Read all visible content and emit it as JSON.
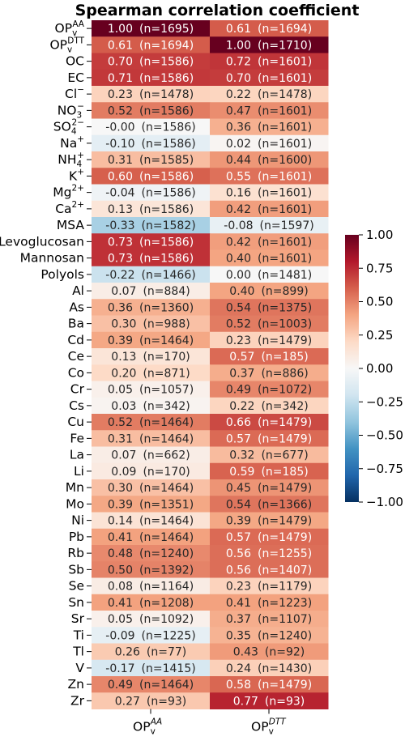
{
  "title": "Spearman correlation coefficient",
  "chart_data": {
    "type": "heatmap",
    "title": "Spearman correlation coefficient",
    "columns": [
      {
        "base": "OP",
        "sub": "v",
        "sup": "AA"
      },
      {
        "base": "OP",
        "sub": "v",
        "sup": "DTT"
      }
    ],
    "rows": [
      {
        "label": [
          {
            "t": "OP"
          },
          {
            "t": "v",
            "sub": true
          },
          {
            "t": "AA",
            "sup": true
          }
        ],
        "cells": [
          {
            "r": "1.00",
            "n": "1695"
          },
          {
            "r": "0.61",
            "n": "1694"
          }
        ]
      },
      {
        "label": [
          {
            "t": "OP"
          },
          {
            "t": "v",
            "sub": true
          },
          {
            "t": "DTT",
            "sup": true
          }
        ],
        "cells": [
          {
            "r": "0.61",
            "n": "1694"
          },
          {
            "r": "1.00",
            "n": "1710"
          }
        ]
      },
      {
        "label": [
          {
            "t": "OC"
          }
        ],
        "cells": [
          {
            "r": "0.70",
            "n": "1586"
          },
          {
            "r": "0.72",
            "n": "1601"
          }
        ]
      },
      {
        "label": [
          {
            "t": "EC"
          }
        ],
        "cells": [
          {
            "r": "0.71",
            "n": "1586"
          },
          {
            "r": "0.70",
            "n": "1601"
          }
        ]
      },
      {
        "label": [
          {
            "t": "Cl"
          },
          {
            "t": "−",
            "sup": true
          }
        ],
        "cells": [
          {
            "r": "0.23",
            "n": "1478"
          },
          {
            "r": "0.22",
            "n": "1478"
          }
        ]
      },
      {
        "label": [
          {
            "t": "NO"
          },
          {
            "t": "3",
            "sub": true
          },
          {
            "t": "−",
            "sup": true
          }
        ],
        "cells": [
          {
            "r": "0.52",
            "n": "1586"
          },
          {
            "r": "0.47",
            "n": "1601"
          }
        ]
      },
      {
        "label": [
          {
            "t": "SO"
          },
          {
            "t": "4",
            "sub": true
          },
          {
            "t": "2−",
            "sup": true
          }
        ],
        "cells": [
          {
            "r": "-0.00",
            "n": "1586"
          },
          {
            "r": "0.36",
            "n": "1601"
          }
        ]
      },
      {
        "label": [
          {
            "t": "Na"
          },
          {
            "t": "+",
            "sup": true
          }
        ],
        "cells": [
          {
            "r": "-0.10",
            "n": "1586"
          },
          {
            "r": "0.02",
            "n": "1601"
          }
        ]
      },
      {
        "label": [
          {
            "t": "NH"
          },
          {
            "t": "4",
            "sub": true
          },
          {
            "t": "+",
            "sup": true
          }
        ],
        "cells": [
          {
            "r": "0.31",
            "n": "1585"
          },
          {
            "r": "0.44",
            "n": "1600"
          }
        ]
      },
      {
        "label": [
          {
            "t": "K"
          },
          {
            "t": "+",
            "sup": true
          }
        ],
        "cells": [
          {
            "r": "0.60",
            "n": "1586"
          },
          {
            "r": "0.55",
            "n": "1601"
          }
        ]
      },
      {
        "label": [
          {
            "t": "Mg"
          },
          {
            "t": "2+",
            "sup": true
          }
        ],
        "cells": [
          {
            "r": "-0.04",
            "n": "1586"
          },
          {
            "r": "0.16",
            "n": "1601"
          }
        ]
      },
      {
        "label": [
          {
            "t": "Ca"
          },
          {
            "t": "2+",
            "sup": true
          }
        ],
        "cells": [
          {
            "r": "0.13",
            "n": "1586"
          },
          {
            "r": "0.42",
            "n": "1601"
          }
        ]
      },
      {
        "label": [
          {
            "t": "MSA"
          }
        ],
        "cells": [
          {
            "r": "-0.33",
            "n": "1582"
          },
          {
            "r": "-0.08",
            "n": "1597"
          }
        ]
      },
      {
        "label": [
          {
            "t": "Levoglucosan"
          }
        ],
        "cells": [
          {
            "r": "0.73",
            "n": "1586"
          },
          {
            "r": "0.42",
            "n": "1601"
          }
        ]
      },
      {
        "label": [
          {
            "t": "Mannosan"
          }
        ],
        "cells": [
          {
            "r": "0.73",
            "n": "1586"
          },
          {
            "r": "0.40",
            "n": "1601"
          }
        ]
      },
      {
        "label": [
          {
            "t": "Polyols"
          }
        ],
        "cells": [
          {
            "r": "-0.22",
            "n": "1466"
          },
          {
            "r": "0.00",
            "n": "1481"
          }
        ]
      },
      {
        "label": [
          {
            "t": "Al"
          }
        ],
        "cells": [
          {
            "r": "0.07",
            "n": "884"
          },
          {
            "r": "0.40",
            "n": "899"
          }
        ]
      },
      {
        "label": [
          {
            "t": "As"
          }
        ],
        "cells": [
          {
            "r": "0.36",
            "n": "1360"
          },
          {
            "r": "0.54",
            "n": "1375"
          }
        ]
      },
      {
        "label": [
          {
            "t": "Ba"
          }
        ],
        "cells": [
          {
            "r": "0.30",
            "n": "988"
          },
          {
            "r": "0.52",
            "n": "1003"
          }
        ]
      },
      {
        "label": [
          {
            "t": "Cd"
          }
        ],
        "cells": [
          {
            "r": "0.39",
            "n": "1464"
          },
          {
            "r": "0.23",
            "n": "1479"
          }
        ]
      },
      {
        "label": [
          {
            "t": "Ce"
          }
        ],
        "cells": [
          {
            "r": "0.13",
            "n": "170"
          },
          {
            "r": "0.57",
            "n": "185"
          }
        ]
      },
      {
        "label": [
          {
            "t": "Co"
          }
        ],
        "cells": [
          {
            "r": "0.20",
            "n": "871"
          },
          {
            "r": "0.37",
            "n": "886"
          }
        ]
      },
      {
        "label": [
          {
            "t": "Cr"
          }
        ],
        "cells": [
          {
            "r": "0.05",
            "n": "1057"
          },
          {
            "r": "0.49",
            "n": "1072"
          }
        ]
      },
      {
        "label": [
          {
            "t": "Cs"
          }
        ],
        "cells": [
          {
            "r": "0.03",
            "n": "342"
          },
          {
            "r": "0.22",
            "n": "342"
          }
        ]
      },
      {
        "label": [
          {
            "t": "Cu"
          }
        ],
        "cells": [
          {
            "r": "0.52",
            "n": "1464"
          },
          {
            "r": "0.66",
            "n": "1479"
          }
        ]
      },
      {
        "label": [
          {
            "t": "Fe"
          }
        ],
        "cells": [
          {
            "r": "0.31",
            "n": "1464"
          },
          {
            "r": "0.57",
            "n": "1479"
          }
        ]
      },
      {
        "label": [
          {
            "t": "La"
          }
        ],
        "cells": [
          {
            "r": "0.07",
            "n": "662"
          },
          {
            "r": "0.32",
            "n": "677"
          }
        ]
      },
      {
        "label": [
          {
            "t": "Li"
          }
        ],
        "cells": [
          {
            "r": "0.09",
            "n": "170"
          },
          {
            "r": "0.59",
            "n": "185"
          }
        ]
      },
      {
        "label": [
          {
            "t": "Mn"
          }
        ],
        "cells": [
          {
            "r": "0.30",
            "n": "1464"
          },
          {
            "r": "0.45",
            "n": "1479"
          }
        ]
      },
      {
        "label": [
          {
            "t": "Mo"
          }
        ],
        "cells": [
          {
            "r": "0.39",
            "n": "1351"
          },
          {
            "r": "0.54",
            "n": "1366"
          }
        ]
      },
      {
        "label": [
          {
            "t": "Ni"
          }
        ],
        "cells": [
          {
            "r": "0.14",
            "n": "1464"
          },
          {
            "r": "0.39",
            "n": "1479"
          }
        ]
      },
      {
        "label": [
          {
            "t": "Pb"
          }
        ],
        "cells": [
          {
            "r": "0.41",
            "n": "1464"
          },
          {
            "r": "0.57",
            "n": "1479"
          }
        ]
      },
      {
        "label": [
          {
            "t": "Rb"
          }
        ],
        "cells": [
          {
            "r": "0.48",
            "n": "1240"
          },
          {
            "r": "0.56",
            "n": "1255"
          }
        ]
      },
      {
        "label": [
          {
            "t": "Sb"
          }
        ],
        "cells": [
          {
            "r": "0.50",
            "n": "1392"
          },
          {
            "r": "0.56",
            "n": "1407"
          }
        ]
      },
      {
        "label": [
          {
            "t": "Se"
          }
        ],
        "cells": [
          {
            "r": "0.08",
            "n": "1164"
          },
          {
            "r": "0.23",
            "n": "1179"
          }
        ]
      },
      {
        "label": [
          {
            "t": "Sn"
          }
        ],
        "cells": [
          {
            "r": "0.41",
            "n": "1208"
          },
          {
            "r": "0.41",
            "n": "1223"
          }
        ]
      },
      {
        "label": [
          {
            "t": "Sr"
          }
        ],
        "cells": [
          {
            "r": "0.05",
            "n": "1092"
          },
          {
            "r": "0.37",
            "n": "1107"
          }
        ]
      },
      {
        "label": [
          {
            "t": "Ti"
          }
        ],
        "cells": [
          {
            "r": "-0.09",
            "n": "1225"
          },
          {
            "r": "0.35",
            "n": "1240"
          }
        ]
      },
      {
        "label": [
          {
            "t": "Tl"
          }
        ],
        "cells": [
          {
            "r": "0.26",
            "n": "77"
          },
          {
            "r": "0.43",
            "n": "92"
          }
        ]
      },
      {
        "label": [
          {
            "t": "V"
          }
        ],
        "cells": [
          {
            "r": "-0.17",
            "n": "1415"
          },
          {
            "r": "0.24",
            "n": "1430"
          }
        ]
      },
      {
        "label": [
          {
            "t": "Zn"
          }
        ],
        "cells": [
          {
            "r": "0.49",
            "n": "1464"
          },
          {
            "r": "0.58",
            "n": "1479"
          }
        ]
      },
      {
        "label": [
          {
            "t": "Zr"
          }
        ],
        "cells": [
          {
            "r": "0.27",
            "n": "93"
          },
          {
            "r": "0.77",
            "n": "93"
          }
        ]
      }
    ],
    "colorbar": {
      "range": [
        -1.0,
        1.0
      ],
      "ticks": [
        "1.00",
        "0.75",
        "0.50",
        "0.25",
        "0.00",
        "−0.25",
        "−0.50",
        "−0.75",
        "−1.00"
      ],
      "colormap": "RdBu_r",
      "stops": [
        "#053061",
        "#2166ac",
        "#4393c3",
        "#92c5de",
        "#d1e5f0",
        "#f7f7f7",
        "#fddbc7",
        "#f4a582",
        "#d6604d",
        "#b2182b",
        "#67001f"
      ]
    }
  }
}
